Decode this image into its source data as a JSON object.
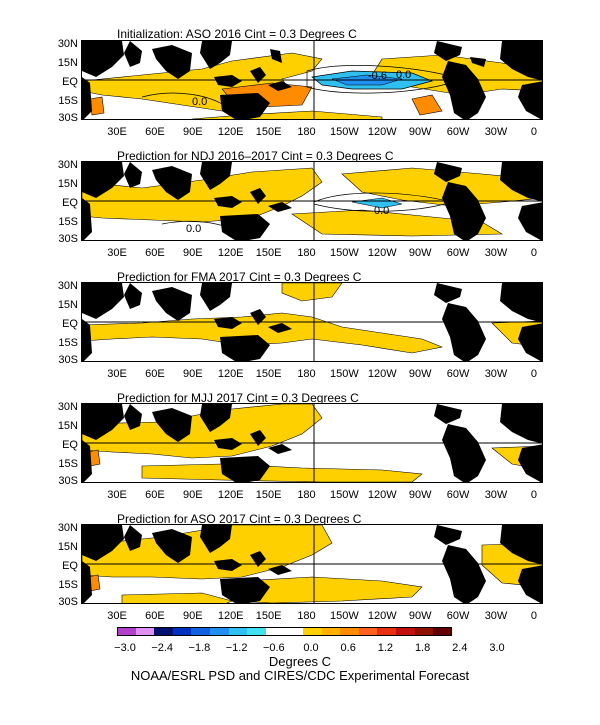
{
  "panels": [
    {
      "title": "Initialization: ASO 2016   Cint = 0.3 Degrees C"
    },
    {
      "title": "Prediction for NDJ 2016–2017   Cint = 0.3 Degrees C"
    },
    {
      "title": "Prediction for FMA 2017   Cint = 0.3 Degrees C"
    },
    {
      "title": "Prediction for MJJ 2017   Cint = 0.3 Degrees C"
    },
    {
      "title": "Prediction for ASO 2017   Cint = 0.3 Degrees C"
    }
  ],
  "lat_labels": [
    "30N",
    "15N",
    "EQ",
    "15S",
    "30S"
  ],
  "lon_labels": [
    "30E",
    "60E",
    "90E",
    "120E",
    "150E",
    "180",
    "150W",
    "120W",
    "90W",
    "60W",
    "30W",
    "0"
  ],
  "contour_labels": {
    "p0_a": "0.0",
    "p0_b": "-0.6",
    "p0_c": "0.0",
    "p1_a": "0.0",
    "p1_b": "0.0"
  },
  "colorbar": {
    "colors": [
      "#b040c8",
      "#e090f0",
      "#001070",
      "#0030c0",
      "#1060e0",
      "#2090f0",
      "#30c0f0",
      "#40e0f0",
      "#ffffff",
      "#ffffff",
      "#ffd000",
      "#ffb000",
      "#ff8c00",
      "#ff6020",
      "#e83010",
      "#c01010",
      "#901000",
      "#600000"
    ],
    "labels": [
      "−3.0",
      "−2.4",
      "−1.8",
      "−1.2",
      "−0.6",
      "0.0",
      "0.6",
      "1.2",
      "1.8",
      "2.4",
      "3.0"
    ]
  },
  "units": "Degrees C",
  "footer": "NOAA/ESRL PSD and CIRES/CDC Experimental Forecast"
}
